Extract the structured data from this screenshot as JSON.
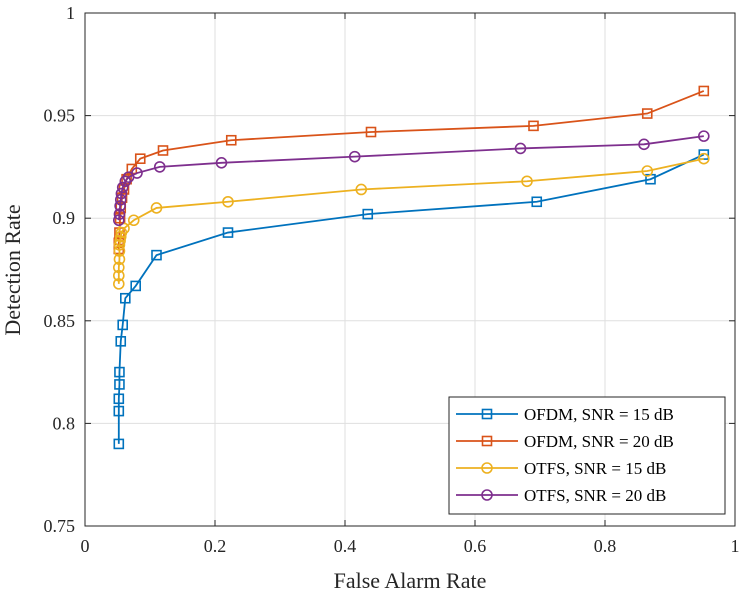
{
  "chart_data": {
    "type": "line",
    "title": "",
    "xlabel": "False Alarm Rate",
    "ylabel": "Detection Rate",
    "xlim": [
      0,
      1
    ],
    "ylim": [
      0.75,
      1
    ],
    "xticks": [
      0,
      0.2,
      0.4,
      0.6,
      0.8,
      1
    ],
    "xtick_labels": [
      "0",
      "0.2",
      "0.4",
      "0.6",
      "0.8",
      "1"
    ],
    "yticks": [
      0.75,
      0.8,
      0.85,
      0.9,
      0.95,
      1
    ],
    "ytick_labels": [
      "0.75",
      "0.8",
      "0.85",
      "0.9",
      "0.95",
      "1"
    ],
    "grid": true,
    "legend_position": "bottom-right",
    "series": [
      {
        "name": "OFDM, SNR = 15 dB",
        "color": "#0072BD",
        "marker": "square",
        "x": [
          0.052,
          0.052,
          0.052,
          0.053,
          0.053,
          0.055,
          0.058,
          0.062,
          0.078,
          0.11,
          0.22,
          0.435,
          0.695,
          0.87,
          0.952
        ],
        "y": [
          0.79,
          0.806,
          0.812,
          0.819,
          0.825,
          0.84,
          0.848,
          0.861,
          0.867,
          0.882,
          0.893,
          0.902,
          0.908,
          0.919,
          0.931
        ]
      },
      {
        "name": "OFDM, SNR = 20 dB",
        "color": "#D95319",
        "marker": "square",
        "x": [
          0.052,
          0.052,
          0.053,
          0.054,
          0.055,
          0.057,
          0.06,
          0.064,
          0.072,
          0.085,
          0.12,
          0.225,
          0.44,
          0.69,
          0.865,
          0.952
        ],
        "y": [
          0.885,
          0.888,
          0.893,
          0.9,
          0.905,
          0.91,
          0.914,
          0.919,
          0.924,
          0.929,
          0.933,
          0.938,
          0.942,
          0.945,
          0.951,
          0.962
        ]
      },
      {
        "name": "OTFS, SNR = 15 dB",
        "color": "#EDB120",
        "marker": "circle",
        "x": [
          0.052,
          0.052,
          0.052,
          0.053,
          0.053,
          0.053,
          0.054,
          0.055,
          0.056,
          0.06,
          0.075,
          0.11,
          0.22,
          0.425,
          0.68,
          0.865,
          0.952
        ],
        "y": [
          0.868,
          0.872,
          0.876,
          0.88,
          0.884,
          0.887,
          0.889,
          0.891,
          0.893,
          0.895,
          0.899,
          0.905,
          0.908,
          0.914,
          0.918,
          0.923,
          0.929
        ]
      },
      {
        "name": "OTFS, SNR = 20 dB",
        "color": "#7E2F8E",
        "marker": "circle",
        "x": [
          0.052,
          0.053,
          0.054,
          0.055,
          0.056,
          0.058,
          0.062,
          0.067,
          0.08,
          0.115,
          0.21,
          0.415,
          0.67,
          0.86,
          0.952
        ],
        "y": [
          0.899,
          0.902,
          0.906,
          0.909,
          0.912,
          0.915,
          0.918,
          0.92,
          0.922,
          0.925,
          0.927,
          0.93,
          0.934,
          0.936,
          0.94
        ]
      }
    ]
  }
}
